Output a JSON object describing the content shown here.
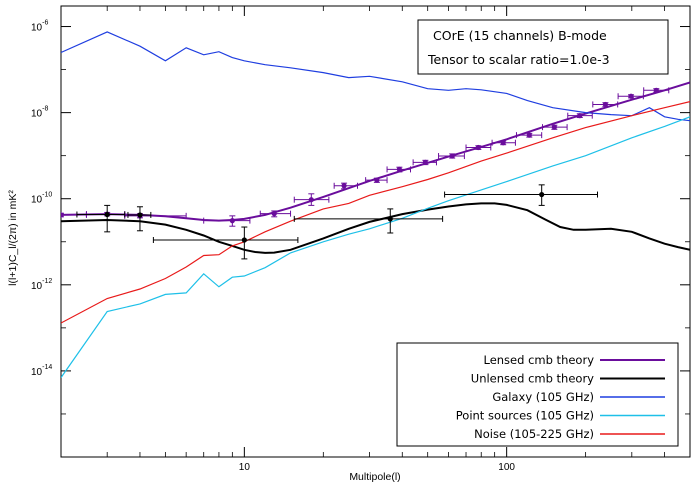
{
  "chart_data": {
    "type": "line",
    "title": "COrE (15 channels)  B-mode",
    "subtitle": "Tensor to scalar ratio=1.0e-3",
    "xlabel": "Multipole(l)",
    "ylabel": "l(l+1)C_l/(2π) in mK²",
    "xscale": "log",
    "yscale": "log",
    "xlim": [
      2,
      500
    ],
    "ylim": [
      1e-16,
      3e-06
    ],
    "xticks": [
      {
        "value": 10,
        "label": "10"
      },
      {
        "value": 100,
        "label": "100"
      }
    ],
    "yticks": [
      {
        "value": 1e-14,
        "base": "10",
        "exp": "-14"
      },
      {
        "value": 1e-12,
        "base": "10",
        "exp": "-12"
      },
      {
        "value": 1e-10,
        "base": "10",
        "exp": "-10"
      },
      {
        "value": 1e-08,
        "base": "10",
        "exp": "-8"
      },
      {
        "value": 1e-06,
        "base": "10",
        "exp": "-6"
      }
    ],
    "grid": false,
    "legend_placement": "bottom-right",
    "series": [
      {
        "name": "Lensed cmb theory",
        "color": "#6a0d9c",
        "style": "line",
        "x": [
          2,
          3,
          4,
          5,
          6,
          7,
          8,
          9,
          10,
          12,
          15,
          20,
          30,
          40,
          60,
          80,
          100,
          150,
          200,
          300,
          400,
          500
        ],
        "y": [
          4.2e-11,
          4.4e-11,
          4.2e-11,
          3.9e-11,
          3.5e-11,
          3.2e-11,
          3.1e-11,
          3.2e-11,
          3.4e-11,
          4.2e-11,
          6.2e-11,
          1.1e-10,
          2.6e-10,
          4.5e-10,
          9.5e-10,
          1.6e-09,
          2.4e-09,
          5.5e-09,
          9.5e-09,
          2e-08,
          3.3e-08,
          5e-08
        ]
      },
      {
        "name": "Unlensed cmb theory",
        "color": "#000000",
        "style": "line",
        "x": [
          2,
          3,
          4,
          5,
          6,
          7,
          8,
          9,
          10,
          11,
          12,
          13,
          15,
          20,
          25,
          30,
          40,
          50,
          60,
          70,
          80,
          90,
          100,
          120,
          140,
          160,
          180,
          200,
          250,
          300,
          350,
          400,
          450,
          500
        ],
        "y": [
          3e-11,
          3.2e-11,
          3e-11,
          2.5e-11,
          1.9e-11,
          1.4e-11,
          1e-11,
          8e-12,
          6.5e-12,
          5.8e-12,
          5.5e-12,
          5.6e-12,
          6.5e-12,
          1.2e-11,
          2e-11,
          2.9e-11,
          4.4e-11,
          5.6e-11,
          6.6e-11,
          7.4e-11,
          7.8e-11,
          7.8e-11,
          7.2e-11,
          5.4e-11,
          3.3e-11,
          2.2e-11,
          1.9e-11,
          1.9e-11,
          2e-11,
          1.7e-11,
          1.2e-11,
          9e-12,
          7.5e-12,
          6.5e-12
        ]
      },
      {
        "name": "Galaxy (105 GHz)",
        "color": "#1f3ee0",
        "style": "line",
        "x": [
          2,
          3,
          4,
          5,
          6,
          7,
          8,
          9,
          10,
          12,
          15,
          20,
          25,
          30,
          40,
          50,
          60,
          70,
          80,
          100,
          120,
          150,
          200,
          250,
          300,
          350,
          400,
          450,
          500
        ],
        "y": [
          2.5e-07,
          7.5e-07,
          3.5e-07,
          1.6e-07,
          3.2e-07,
          2.2e-07,
          2.6e-07,
          1.9e-07,
          1.6e-07,
          1.3e-07,
          1.1e-07,
          8.5e-08,
          6.5e-08,
          7e-08,
          5.2e-08,
          3.6e-08,
          3.3e-08,
          3.6e-08,
          3.4e-08,
          2.8e-08,
          1.9e-08,
          1.3e-08,
          1e-08,
          9e-09,
          8.5e-09,
          1.3e-08,
          8e-09,
          7e-09,
          6.5e-09
        ]
      },
      {
        "name": "Point sources (105 GHz)",
        "color": "#1ec0e8",
        "style": "line",
        "x": [
          2,
          3,
          4,
          5,
          6,
          7,
          8,
          9,
          10,
          12,
          15,
          20,
          25,
          30,
          40,
          50,
          60,
          80,
          100,
          150,
          200,
          300,
          400,
          500
        ],
        "y": [
          7e-15,
          2.4e-13,
          3.6e-13,
          6e-13,
          6.5e-13,
          1.8e-12,
          9e-13,
          1.5e-12,
          1.6e-12,
          2.5e-12,
          5.5e-12,
          1e-11,
          1.5e-11,
          2e-11,
          3.5e-11,
          6e-11,
          9e-11,
          1.6e-10,
          2.5e-10,
          5.8e-10,
          1e-09,
          2.6e-09,
          4.8e-09,
          8e-09
        ]
      },
      {
        "name": "Noise (105-225 GHz)",
        "color": "#e81a1a",
        "style": "line",
        "x": [
          2,
          3,
          4,
          5,
          6,
          7,
          8,
          9,
          10,
          12,
          15,
          20,
          25,
          30,
          40,
          50,
          60,
          80,
          100,
          150,
          200,
          300,
          400,
          500
        ],
        "y": [
          1.3e-13,
          4.8e-13,
          8e-13,
          1.4e-12,
          2.6e-12,
          4.8e-12,
          5e-12,
          8e-12,
          1e-11,
          1.7e-11,
          3e-11,
          5.8e-11,
          7.8e-11,
          1.2e-10,
          1.9e-10,
          2.8e-10,
          4e-10,
          7.5e-10,
          1.15e-09,
          2.6e-09,
          4.5e-09,
          8.5e-09,
          1.3e-08,
          1.8e-08
        ]
      }
    ],
    "error_points": [
      {
        "x": 2.0,
        "y": 4.2e-11,
        "xlo": 2.0,
        "xhi": 2.5,
        "ylo": 3.8e-11,
        "yhi": 4.6e-11,
        "color": "#6a0d9c"
      },
      {
        "x": 3.0,
        "y": 4.4e-11,
        "xlo": 2.5,
        "xhi": 3.5,
        "ylo": 4e-11,
        "yhi": 4.8e-11,
        "color": "#6a0d9c"
      },
      {
        "x": 4.0,
        "y": 4e-11,
        "xlo": 3.5,
        "xhi": 6.0,
        "ylo": 3.6e-11,
        "yhi": 4.5e-11,
        "color": "#6a0d9c"
      },
      {
        "x": 9.0,
        "y": 3.1e-11,
        "xlo": 7.0,
        "xhi": 10.5,
        "ylo": 2.3e-11,
        "yhi": 4e-11,
        "color": "#6a0d9c"
      },
      {
        "x": 13.0,
        "y": 4.5e-11,
        "xlo": 11.5,
        "xhi": 15.0,
        "ylo": 3.8e-11,
        "yhi": 5.2e-11,
        "color": "#6a0d9c"
      },
      {
        "x": 18.0,
        "y": 9.5e-11,
        "xlo": 15.5,
        "xhi": 21.0,
        "ylo": 7e-11,
        "yhi": 1.3e-10,
        "color": "#6a0d9c"
      },
      {
        "x": 24.0,
        "y": 2e-10,
        "xlo": 22.0,
        "xhi": 27.0,
        "ylo": 1.7e-10,
        "yhi": 2.3e-10,
        "color": "#6a0d9c"
      },
      {
        "x": 32.0,
        "y": 2.7e-10,
        "xlo": 29.0,
        "xhi": 35.0,
        "ylo": 2.4e-10,
        "yhi": 3e-10,
        "color": "#6a0d9c"
      },
      {
        "x": 39.0,
        "y": 4.8e-10,
        "xlo": 35.0,
        "xhi": 43.0,
        "ylo": 4.2e-10,
        "yhi": 5.4e-10,
        "color": "#6a0d9c"
      },
      {
        "x": 49.0,
        "y": 7e-10,
        "xlo": 44.0,
        "xhi": 54.0,
        "ylo": 6.2e-10,
        "yhi": 7.8e-10,
        "color": "#6a0d9c"
      },
      {
        "x": 62.0,
        "y": 9.8e-10,
        "xlo": 55.0,
        "xhi": 69.0,
        "ylo": 8.8e-10,
        "yhi": 1.1e-09,
        "color": "#6a0d9c"
      },
      {
        "x": 78.0,
        "y": 1.55e-09,
        "xlo": 70.0,
        "xhi": 87.0,
        "ylo": 1.4e-09,
        "yhi": 1.7e-09,
        "color": "#6a0d9c"
      },
      {
        "x": 97.0,
        "y": 2e-09,
        "xlo": 88.0,
        "xhi": 108.0,
        "ylo": 1.8e-09,
        "yhi": 2.2e-09,
        "color": "#6a0d9c"
      },
      {
        "x": 122.0,
        "y": 3e-09,
        "xlo": 109.0,
        "xhi": 136.0,
        "ylo": 2.7e-09,
        "yhi": 3.3e-09,
        "color": "#6a0d9c"
      },
      {
        "x": 152.0,
        "y": 4.6e-09,
        "xlo": 137.0,
        "xhi": 170.0,
        "ylo": 4.1e-09,
        "yhi": 5.1e-09,
        "color": "#6a0d9c"
      },
      {
        "x": 190.0,
        "y": 8.5e-09,
        "xlo": 171.0,
        "xhi": 212.0,
        "ylo": 7.7e-09,
        "yhi": 9.4e-09,
        "color": "#6a0d9c"
      },
      {
        "x": 238.0,
        "y": 1.55e-08,
        "xlo": 213.0,
        "xhi": 265.0,
        "ylo": 1.4e-08,
        "yhi": 1.7e-08,
        "color": "#6a0d9c"
      },
      {
        "x": 298.0,
        "y": 2.4e-08,
        "xlo": 266.0,
        "xhi": 332.0,
        "ylo": 2.2e-08,
        "yhi": 2.6e-08,
        "color": "#6a0d9c"
      },
      {
        "x": 372.0,
        "y": 3.3e-08,
        "xlo": 333.0,
        "xhi": 415.0,
        "ylo": 3e-08,
        "yhi": 3.6e-08,
        "color": "#6a0d9c"
      },
      {
        "x": 3.0,
        "y": 4.3e-11,
        "xlo": 2.3,
        "xhi": 3.5,
        "ylo": 1.7e-11,
        "yhi": 7e-11,
        "color": "#000000"
      },
      {
        "x": 4.0,
        "y": 4.2e-11,
        "xlo": 3.6,
        "xhi": 4.4,
        "ylo": 1.8e-11,
        "yhi": 6.5e-11,
        "color": "#000000"
      },
      {
        "x": 10.0,
        "y": 1.1e-11,
        "xlo": 4.5,
        "xhi": 16.0,
        "ylo": 4e-12,
        "yhi": 2.2e-11,
        "color": "#000000"
      },
      {
        "x": 36.0,
        "y": 3.4e-11,
        "xlo": 15.5,
        "xhi": 57.0,
        "ylo": 1.6e-11,
        "yhi": 5.8e-11,
        "color": "#000000"
      },
      {
        "x": 136.0,
        "y": 1.25e-10,
        "xlo": 58.0,
        "xhi": 222.0,
        "ylo": 7e-11,
        "yhi": 2.1e-10,
        "color": "#000000"
      }
    ]
  }
}
